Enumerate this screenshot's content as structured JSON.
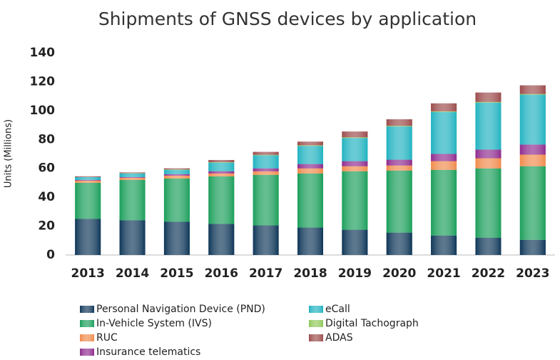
{
  "chart_data": {
    "type": "stacked_bar",
    "title": "Shipments of GNSS devices by application",
    "y_label": "Units (Millions)",
    "categories": [
      "2013",
      "2014",
      "2015",
      "2016",
      "2017",
      "2018",
      "2019",
      "2020",
      "2021",
      "2022",
      "2023"
    ],
    "series": [
      {
        "name": "Personal Navigation Device (PND)",
        "color": "#0d3557",
        "values": [
          25,
          24,
          23,
          21.5,
          20.5,
          19,
          17.5,
          15.5,
          13.5,
          12,
          10.5
        ]
      },
      {
        "name": "In-Vehicle System (IVS)",
        "color": "#1a9e5a",
        "values": [
          25,
          28,
          30,
          33,
          35,
          37.5,
          40.5,
          43,
          45.5,
          48,
          51
        ]
      },
      {
        "name": "RUC",
        "color": "#f08a4b",
        "values": [
          1.5,
          1.5,
          2,
          2,
          2.5,
          3.5,
          3.5,
          3.5,
          6,
          7,
          8
        ]
      },
      {
        "name": "Insurance telematics",
        "color": "#8e2a8e",
        "values": [
          0.5,
          0.5,
          1,
          1.5,
          2,
          3,
          3.5,
          4,
          5,
          6,
          7
        ]
      },
      {
        "name": "eCall",
        "color": "#20b2c0",
        "values": [
          2,
          2.5,
          3,
          6,
          9,
          12.5,
          16,
          23,
          29,
          32.5,
          34.5
        ]
      },
      {
        "name": "Digital Tachograph",
        "color": "#8fc85a",
        "values": [
          0,
          0.2,
          0.3,
          0.3,
          0.4,
          0.5,
          0.5,
          0.5,
          0.5,
          0.5,
          0.5
        ]
      },
      {
        "name": "ADAS",
        "color": "#9b4a4a",
        "values": [
          0.5,
          0.5,
          0.7,
          1.5,
          2,
          2.5,
          4,
          4.5,
          5.5,
          6.5,
          6
        ]
      }
    ],
    "ylim": [
      0,
      140
    ],
    "yticks": [
      0,
      20,
      40,
      60,
      80,
      100,
      120,
      140
    ],
    "grid": false
  }
}
